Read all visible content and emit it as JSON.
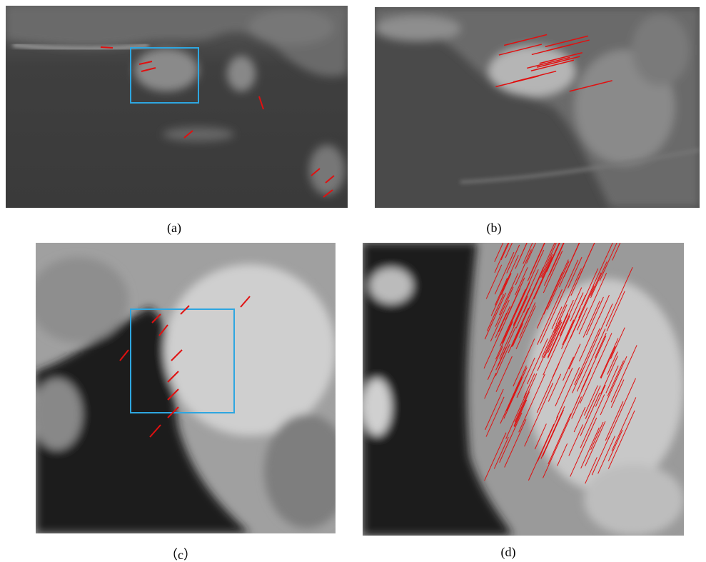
{
  "figure": {
    "captions": [
      "(a)",
      "(b)",
      "（c）",
      "(d)"
    ]
  }
}
